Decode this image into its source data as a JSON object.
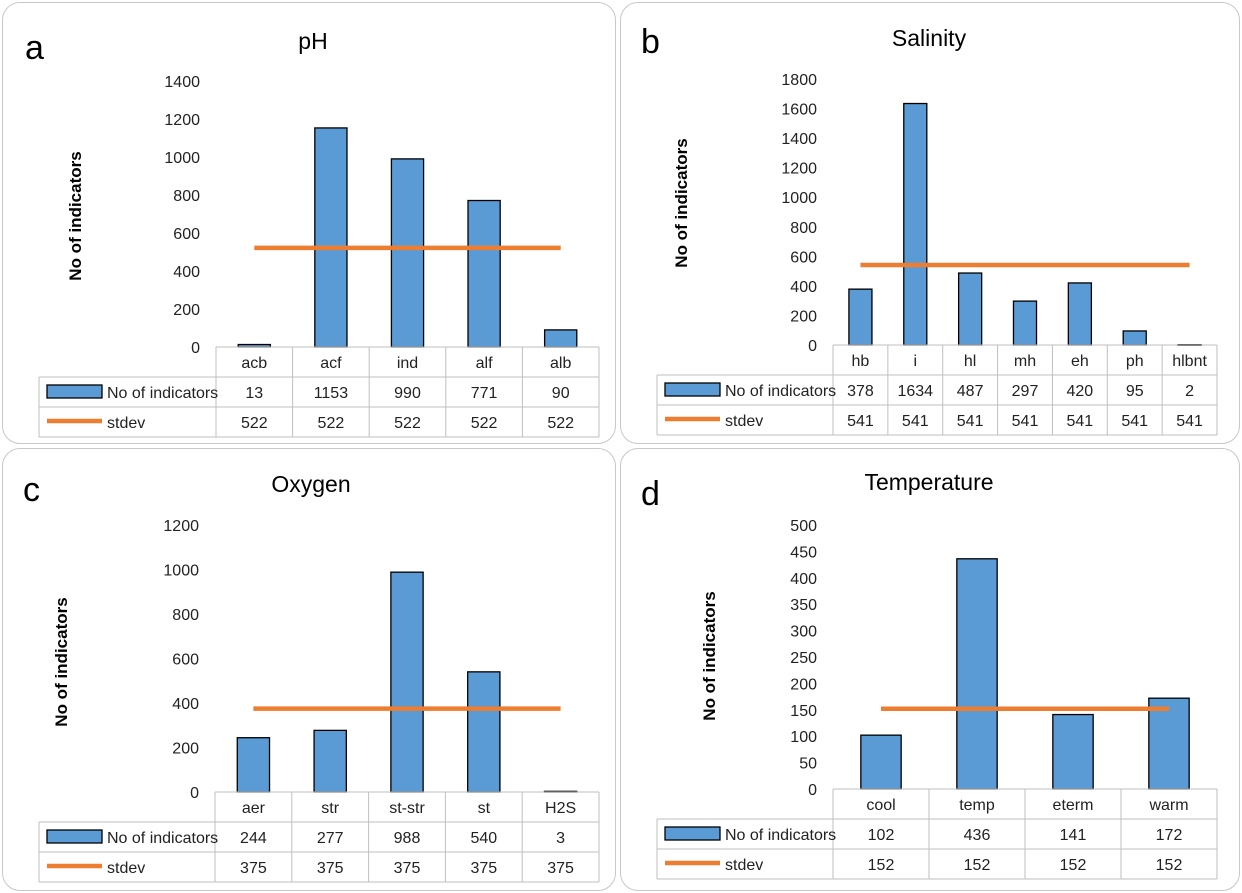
{
  "colors": {
    "bar": "#5b9bd5",
    "bar_stroke": "#000000",
    "line": "#ed7d31",
    "grid": "#d9d9d9",
    "border": "#bfbfbf"
  },
  "series_names": {
    "bars": "No of indicators",
    "line": "stdev"
  },
  "chart_data": [
    {
      "letter": "a",
      "type": "bar",
      "title": "pH",
      "ylabel": "No of indicators",
      "ylim": [
        0,
        1400
      ],
      "ystep": 200,
      "categories": [
        "acb",
        "acf",
        "ind",
        "alf",
        "alb"
      ],
      "series": [
        {
          "name": "No of indicators",
          "type": "bar",
          "values": [
            13,
            1153,
            990,
            771,
            90
          ]
        },
        {
          "name": "stdev",
          "type": "line",
          "values": [
            522,
            522,
            522,
            522,
            522
          ]
        }
      ]
    },
    {
      "letter": "b",
      "type": "bar",
      "title": "Salinity",
      "ylabel": "No of indicators",
      "ylim": [
        0,
        1800
      ],
      "ystep": 200,
      "categories": [
        "hb",
        "i",
        "hl",
        "mh",
        "eh",
        "ph",
        "hlbnt"
      ],
      "series": [
        {
          "name": "No of indicators",
          "type": "bar",
          "values": [
            378,
            1634,
            487,
            297,
            420,
            95,
            2
          ]
        },
        {
          "name": "stdev",
          "type": "line",
          "values": [
            541,
            541,
            541,
            541,
            541,
            541,
            541
          ]
        }
      ]
    },
    {
      "letter": "c",
      "type": "bar",
      "title": "Oxygen",
      "ylabel": "No of indicators",
      "ylim": [
        0,
        1200
      ],
      "ystep": 200,
      "categories": [
        "aer",
        "str",
        "st-str",
        "st",
        "H2S"
      ],
      "series": [
        {
          "name": "No of indicators",
          "type": "bar",
          "values": [
            244,
            277,
            988,
            540,
            3
          ]
        },
        {
          "name": "stdev",
          "type": "line",
          "values": [
            375,
            375,
            375,
            375,
            375
          ]
        }
      ]
    },
    {
      "letter": "d",
      "type": "bar",
      "title": "Temperature",
      "ylabel": "No of indicators",
      "ylim": [
        0,
        500
      ],
      "ystep": 50,
      "categories": [
        "cool",
        "temp",
        "eterm",
        "warm"
      ],
      "series": [
        {
          "name": "No of indicators",
          "type": "bar",
          "values": [
            102,
            436,
            141,
            172
          ]
        },
        {
          "name": "stdev",
          "type": "line",
          "values": [
            152,
            152,
            152,
            152
          ]
        }
      ]
    }
  ]
}
